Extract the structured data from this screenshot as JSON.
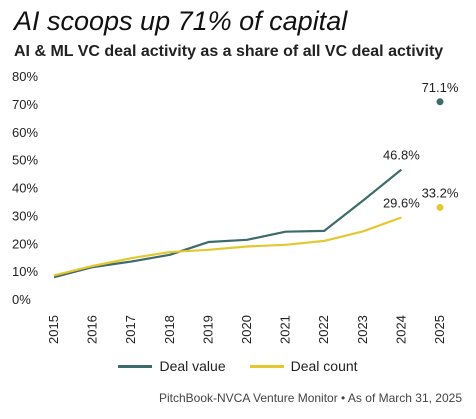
{
  "title": "AI scoops up 71% of capital",
  "subtitle": "AI & ML VC deal activity as a share of all VC deal activity",
  "source": "PitchBook-NVCA Venture Monitor • As of March 31, 2025",
  "colors": {
    "deal_value": "#3d6b6b",
    "deal_count": "#e5c72f"
  },
  "chart_data": {
    "type": "line",
    "x": [
      "2015",
      "2016",
      "2017",
      "2018",
      "2019",
      "2020",
      "2021",
      "2022",
      "2023",
      "2024",
      "2025"
    ],
    "ylim": [
      0,
      80
    ],
    "yticks": [
      "0%",
      "10%",
      "20%",
      "30%",
      "40%",
      "50%",
      "60%",
      "70%",
      "80%"
    ],
    "series": [
      {
        "name": "Deal value",
        "values": [
          8.2,
          11.8,
          13.8,
          16.2,
          20.8,
          21.6,
          24.5,
          24.8,
          35.6,
          46.8,
          71.1
        ],
        "connected_through": "2024",
        "labels": {
          "2024": "46.8%",
          "2025": "71.1%"
        }
      },
      {
        "name": "Deal count",
        "values": [
          8.8,
          12.2,
          15.0,
          17.2,
          18.0,
          19.2,
          19.8,
          21.2,
          24.6,
          29.6,
          33.2
        ],
        "connected_through": "2024",
        "labels": {
          "2024": "29.6%",
          "2025": "33.2%"
        }
      }
    ],
    "grid": false,
    "legend": "bottom"
  }
}
